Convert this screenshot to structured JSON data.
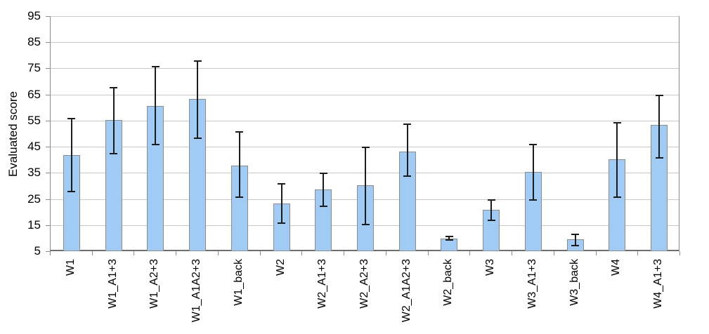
{
  "chart_data": {
    "type": "bar",
    "title": "",
    "xlabel": "",
    "ylabel": "Evaluated score",
    "ylim": [
      5,
      95
    ],
    "yticks": [
      5,
      15,
      25,
      35,
      45,
      55,
      65,
      75,
      85,
      95
    ],
    "grid": true,
    "legend": false,
    "categories": [
      "W1",
      "W1_A1+3",
      "W1_A2+3",
      "W1_A1A2+3",
      "W1_back",
      "W2",
      "W2_A1+3",
      "W2_A2+3",
      "W2_A1A2+3",
      "W2_back",
      "W3",
      "W3_A1+3",
      "W3_back",
      "W4",
      "W4_A1+3"
    ],
    "series": [
      {
        "name": "Evaluated score",
        "values": [
          42,
          55.5,
          61,
          63.5,
          38,
          23.5,
          29,
          30.5,
          43.5,
          10.2,
          21,
          35.5,
          9.8,
          40.5,
          53.5
        ],
        "error_high": [
          56,
          68,
          76,
          78,
          51,
          31,
          35,
          45,
          54,
          11,
          25,
          46,
          11.8,
          54.5,
          65
        ],
        "error_low": [
          28,
          42.5,
          46,
          48.5,
          26,
          16,
          22.5,
          15.5,
          34,
          9.5,
          17,
          25,
          7.5,
          26,
          41
        ]
      }
    ],
    "colors": {
      "bar_fill": "#a0cbf4",
      "bar_border": "#8c8c8c",
      "gridline": "#c9c9c9",
      "plot_border": "#8c8c8c",
      "error_bar": "#1c1c1c",
      "text": "#000000",
      "background": "#ffffff"
    }
  }
}
